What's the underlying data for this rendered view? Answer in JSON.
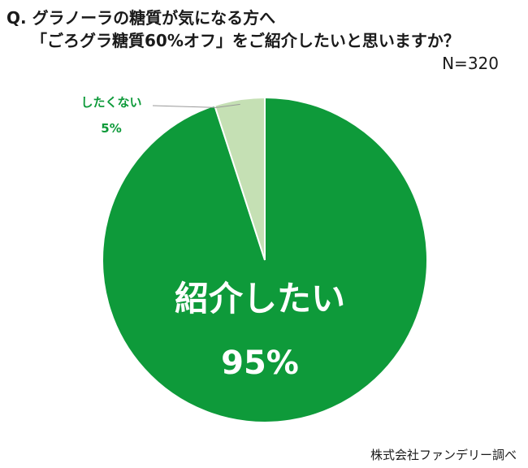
{
  "header": {
    "question_line1": "Q. グラノーラの糖質が気になる方へ",
    "question_line2": "「ごろグラ糖質60%オフ」をご紹介したいと思いますか？",
    "sample_size": "N=320"
  },
  "footer": {
    "source": "株式会社ファンデリー調べ"
  },
  "chart_data": {
    "type": "pie",
    "title": "Q. グラノーラの糖質が気になる方へ 「ごろグラ糖質60%オフ」をご紹介したいと思いますか？",
    "slices": [
      {
        "label": "紹介したい",
        "value": 95,
        "value_label": "95%",
        "color": "#0e9a3a"
      },
      {
        "label": "したくない",
        "value": 5,
        "value_label": "5%",
        "color": "#c5e0b4"
      }
    ],
    "legend": "none"
  }
}
